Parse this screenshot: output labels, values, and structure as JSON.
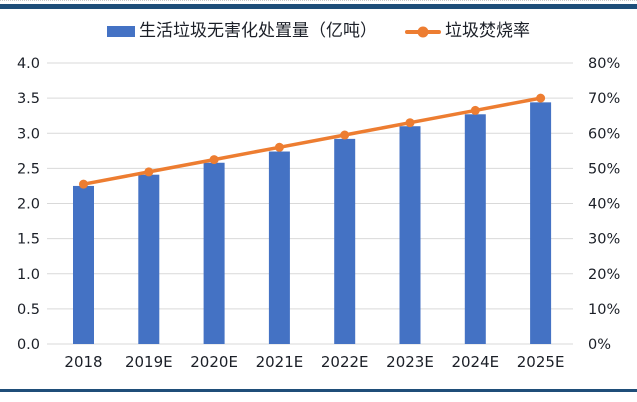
{
  "panel": {
    "background": "#FFFFFF",
    "top_rule_color": "#1F4E79",
    "bottom_rule_color": "#1F4E79"
  },
  "legend": {
    "items": [
      {
        "label": "生活垃圾无害化处置量（亿吨）",
        "marker": "bar-swatch",
        "color": "#4472C4"
      },
      {
        "label": "垃圾焚烧率",
        "marker": "line-dot",
        "color": "#ED7D31"
      }
    ]
  },
  "chart_data": {
    "type": "combo_bar_line",
    "title": "",
    "categories": [
      "2018",
      "2019E",
      "2020E",
      "2021E",
      "2022E",
      "2023E",
      "2024E",
      "2025E"
    ],
    "series": [
      {
        "name": "生活垃圾无害化处置量（亿吨）",
        "type": "bar",
        "y_axis": "left",
        "color": "#4472C4",
        "values": [
          2.25,
          2.41,
          2.58,
          2.74,
          2.92,
          3.1,
          3.27,
          3.44
        ]
      },
      {
        "name": "垃圾焚烧率",
        "type": "line",
        "y_axis": "right",
        "color": "#ED7D31",
        "unit": "%",
        "values": [
          45.5,
          49.0,
          52.5,
          56.0,
          59.5,
          63.0,
          66.5,
          70.0
        ]
      }
    ],
    "left_axis": {
      "min": 0,
      "max": 4,
      "step": 0.5,
      "ticks": [
        "0.0",
        "0.5",
        "1.0",
        "1.5",
        "2.0",
        "2.5",
        "3.0",
        "3.5",
        "4.0"
      ]
    },
    "right_axis": {
      "min": 0,
      "max": 80,
      "step": 10,
      "unit": "%",
      "ticks": [
        "0%",
        "10%",
        "20%",
        "30%",
        "40%",
        "50%",
        "60%",
        "70%",
        "80%"
      ]
    },
    "grid": true,
    "gridline_color": "#D9D9D9",
    "text_color": "#1B1F27",
    "legend_position": "top"
  }
}
